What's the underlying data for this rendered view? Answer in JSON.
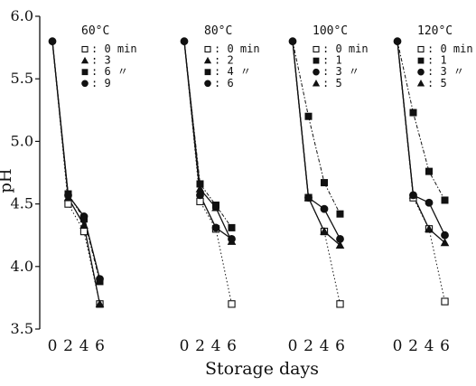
{
  "chart_data": {
    "type": "line",
    "xlabel": "Storage days",
    "ylabel": "pH",
    "ylim": [
      3.5,
      6.0
    ],
    "y_ticks": [
      "3.5",
      "4.0",
      "4.5",
      "5.0",
      "5.5",
      "6.0"
    ],
    "x_ticks": [
      "0",
      "2",
      "4",
      "6"
    ],
    "grid": false,
    "colors": {
      "ink": "#111111"
    },
    "panels": [
      {
        "title": "60°C",
        "legend": [
          {
            "label": ": 0 min",
            "marker": "open-square"
          },
          {
            "label": ": 3",
            "marker": "triangle"
          },
          {
            "label": ": 6  〃",
            "marker": "square"
          },
          {
            "label": ": 9",
            "marker": "circle"
          }
        ],
        "series": [
          {
            "marker": "open-square",
            "x": [
              0,
              2,
              4,
              6
            ],
            "y": [
              5.8,
              4.5,
              4.28,
              3.7
            ]
          },
          {
            "marker": "triangle",
            "x": [
              0,
              2,
              4,
              6
            ],
            "y": [
              5.8,
              4.55,
              4.33,
              3.7
            ]
          },
          {
            "marker": "square",
            "x": [
              0,
              2,
              4,
              6
            ],
            "y": [
              5.8,
              4.58,
              4.38,
              3.88
            ]
          },
          {
            "marker": "circle",
            "x": [
              0,
              2,
              4,
              6
            ],
            "y": [
              5.8,
              4.57,
              4.4,
              3.9
            ]
          }
        ]
      },
      {
        "title": "80°C",
        "legend": [
          {
            "label": ": 0 min",
            "marker": "open-square"
          },
          {
            "label": ": 2",
            "marker": "triangle"
          },
          {
            "label": ": 4  〃",
            "marker": "square"
          },
          {
            "label": ": 6",
            "marker": "circle"
          }
        ],
        "series": [
          {
            "marker": "open-square",
            "x": [
              0,
              2,
              4,
              6
            ],
            "y": [
              5.8,
              4.52,
              4.3,
              3.7
            ]
          },
          {
            "marker": "triangle",
            "x": [
              0,
              2,
              4,
              6
            ],
            "y": [
              5.8,
              4.62,
              4.47,
              4.2
            ]
          },
          {
            "marker": "square",
            "x": [
              0,
              2,
              4,
              6
            ],
            "y": [
              5.8,
              4.66,
              4.49,
              4.31
            ]
          },
          {
            "marker": "circle",
            "x": [
              0,
              2,
              4,
              6
            ],
            "y": [
              5.8,
              4.57,
              4.31,
              4.22
            ]
          }
        ]
      },
      {
        "title": "100°C",
        "legend": [
          {
            "label": ": 0 min",
            "marker": "open-square"
          },
          {
            "label": ": 1",
            "marker": "square"
          },
          {
            "label": ": 3  〃",
            "marker": "circle"
          },
          {
            "label": ": 5",
            "marker": "triangle"
          }
        ],
        "series": [
          {
            "marker": "open-square",
            "x": [
              0,
              2,
              4,
              6
            ],
            "y": [
              5.8,
              4.55,
              4.28,
              3.7
            ]
          },
          {
            "marker": "square",
            "x": [
              0,
              2,
              4,
              6
            ],
            "y": [
              5.8,
              5.2,
              4.67,
              4.42
            ]
          },
          {
            "marker": "circle",
            "x": [
              0,
              2,
              4,
              6
            ],
            "y": [
              5.8,
              4.55,
              4.46,
              4.22
            ]
          },
          {
            "marker": "triangle",
            "x": [
              0,
              2,
              4,
              6
            ],
            "y": [
              5.8,
              4.55,
              4.28,
              4.17
            ]
          }
        ]
      },
      {
        "title": "120°C",
        "legend": [
          {
            "label": ": 0 min",
            "marker": "open-square"
          },
          {
            "label": ": 1",
            "marker": "square"
          },
          {
            "label": ": 3  〃",
            "marker": "circle"
          },
          {
            "label": ": 5",
            "marker": "triangle"
          }
        ],
        "series": [
          {
            "marker": "open-square",
            "x": [
              0,
              2,
              4,
              6
            ],
            "y": [
              5.8,
              4.55,
              4.3,
              3.72
            ]
          },
          {
            "marker": "square",
            "x": [
              0,
              2,
              4,
              6
            ],
            "y": [
              5.8,
              5.23,
              4.76,
              4.53
            ]
          },
          {
            "marker": "circle",
            "x": [
              0,
              2,
              4,
              6
            ],
            "y": [
              5.8,
              4.57,
              4.51,
              4.25
            ]
          },
          {
            "marker": "triangle",
            "x": [
              0,
              2,
              4,
              6
            ],
            "y": [
              5.8,
              4.57,
              4.3,
              4.19
            ]
          }
        ]
      }
    ]
  }
}
